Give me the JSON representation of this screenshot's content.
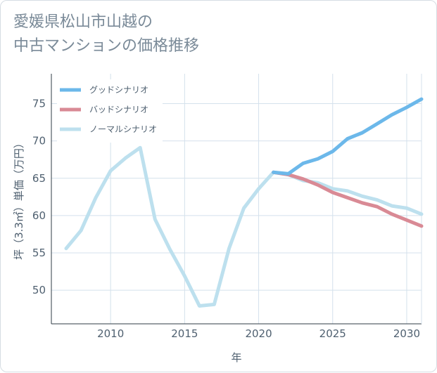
{
  "title_lines": [
    "愛媛県松山市山越の",
    "中古マンションの価格推移"
  ],
  "chart_data": {
    "type": "line",
    "title": "愛媛県松山市山越の中古マンションの価格推移",
    "xlabel": "年",
    "ylabel": "坪（3.3㎡）単価（万円）",
    "xlim": [
      2006,
      2031
    ],
    "ylim": [
      45.5,
      79
    ],
    "xticks": [
      2010,
      2015,
      2020,
      2025,
      2030
    ],
    "yticks": [
      50,
      55,
      60,
      65,
      70,
      75
    ],
    "legend_position": "top-left",
    "series": [
      {
        "name": "グッドシナリオ",
        "color": "#6cb8ea",
        "x": [
          2021,
          2022,
          2023,
          2024,
          2025,
          2026,
          2027,
          2028,
          2029,
          2030,
          2031
        ],
        "values": [
          65.8,
          65.6,
          67.0,
          67.6,
          68.6,
          70.3,
          71.1,
          72.3,
          73.5,
          74.5,
          75.6
        ]
      },
      {
        "name": "バッドシナリオ",
        "color": "#d98a95",
        "x": [
          2021,
          2022,
          2023,
          2024,
          2025,
          2026,
          2027,
          2028,
          2029,
          2030,
          2031
        ],
        "values": [
          65.8,
          65.5,
          64.9,
          64.1,
          63.1,
          62.4,
          61.7,
          61.2,
          60.2,
          59.4,
          58.6
        ]
      },
      {
        "name": "ノーマルシナリオ",
        "color": "#bde0ee",
        "x": [
          2007,
          2008,
          2009,
          2010,
          2011,
          2012,
          2013,
          2014,
          2015,
          2016,
          2017,
          2018,
          2019,
          2020,
          2021,
          2022,
          2023,
          2024,
          2025,
          2026,
          2027,
          2028,
          2029,
          2030,
          2031
        ],
        "values": [
          55.6,
          58.0,
          62.4,
          66.0,
          67.7,
          69.1,
          59.5,
          55.5,
          51.9,
          47.9,
          48.1,
          55.6,
          61.0,
          63.6,
          65.8,
          65.5,
          64.7,
          64.4,
          63.6,
          63.3,
          62.6,
          62.1,
          61.3,
          61.0,
          60.2
        ]
      }
    ]
  }
}
